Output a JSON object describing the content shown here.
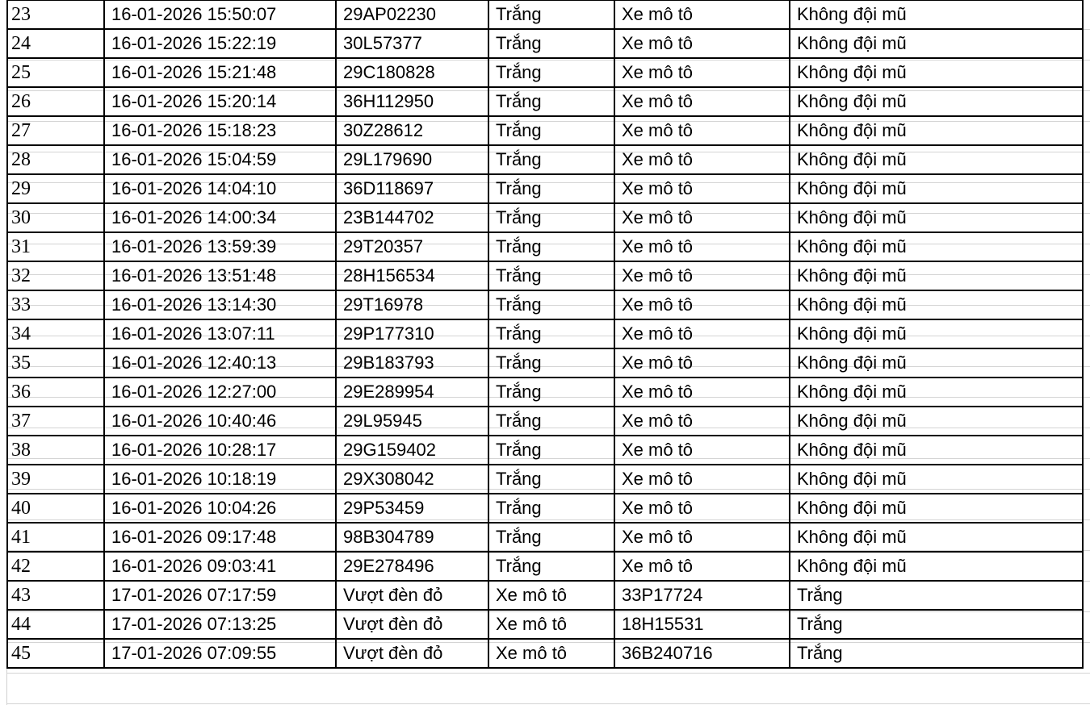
{
  "rows": [
    [
      "23",
      "16-01-2026 15:50:07",
      "29AP02230",
      "Trắng",
      "Xe mô tô",
      "Không đội mũ"
    ],
    [
      "24",
      "16-01-2026 15:22:19",
      "30L57377",
      "Trắng",
      "Xe mô tô",
      "Không đội mũ"
    ],
    [
      "25",
      "16-01-2026 15:21:48",
      "29C180828",
      "Trắng",
      "Xe mô tô",
      "Không đội mũ"
    ],
    [
      "26",
      "16-01-2026 15:20:14",
      "36H112950",
      "Trắng",
      "Xe mô tô",
      "Không đội mũ"
    ],
    [
      "27",
      "16-01-2026 15:18:23",
      "30Z28612",
      "Trắng",
      "Xe mô tô",
      "Không đội mũ"
    ],
    [
      "28",
      "16-01-2026 15:04:59",
      "29L179690",
      "Trắng",
      "Xe mô tô",
      "Không đội mũ"
    ],
    [
      "29",
      "16-01-2026 14:04:10",
      "36D118697",
      "Trắng",
      "Xe mô tô",
      "Không đội mũ"
    ],
    [
      "30",
      "16-01-2026 14:00:34",
      "23B144702",
      "Trắng",
      "Xe mô tô",
      "Không đội mũ"
    ],
    [
      "31",
      "16-01-2026 13:59:39",
      "29T20357",
      "Trắng",
      "Xe mô tô",
      "Không đội mũ"
    ],
    [
      "32",
      "16-01-2026 13:51:48",
      "28H156534",
      "Trắng",
      "Xe mô tô",
      "Không đội mũ"
    ],
    [
      "33",
      "16-01-2026 13:14:30",
      "29T16978",
      "Trắng",
      "Xe mô tô",
      "Không đội mũ"
    ],
    [
      "34",
      "16-01-2026 13:07:11",
      "29P177310",
      "Trắng",
      "Xe mô tô",
      "Không đội mũ"
    ],
    [
      "35",
      "16-01-2026 12:40:13",
      "29B183793",
      "Trắng",
      "Xe mô tô",
      "Không đội mũ"
    ],
    [
      "36",
      "16-01-2026 12:27:00",
      "29E289954",
      "Trắng",
      "Xe mô tô",
      "Không đội mũ"
    ],
    [
      "37",
      "16-01-2026 10:40:46",
      "29L95945",
      "Trắng",
      "Xe mô tô",
      "Không đội mũ"
    ],
    [
      "38",
      "16-01-2026 10:28:17",
      "29G159402",
      "Trắng",
      "Xe mô tô",
      "Không đội mũ"
    ],
    [
      "39",
      "16-01-2026 10:18:19",
      "29X308042",
      "Trắng",
      "Xe mô tô",
      "Không đội mũ"
    ],
    [
      "40",
      "16-01-2026 10:04:26",
      "29P53459",
      "Trắng",
      "Xe mô tô",
      "Không đội mũ"
    ],
    [
      "41",
      "16-01-2026 09:17:48",
      "98B304789",
      "Trắng",
      "Xe mô tô",
      "Không đội mũ"
    ],
    [
      "42",
      "16-01-2026 09:03:41",
      "29E278496",
      "Trắng",
      "Xe mô tô",
      "Không đội mũ"
    ],
    [
      "43",
      "17-01-2026 07:17:59",
      "Vượt đèn đỏ",
      "Xe mô tô",
      "33P17724",
      "Trắng"
    ],
    [
      "44",
      "17-01-2026 07:13:25",
      "Vượt đèn đỏ",
      "Xe mô tô",
      "18H15531",
      "Trắng"
    ],
    [
      "45",
      "17-01-2026 07:09:55",
      "Vượt đèn đỏ",
      "Xe mô tô",
      "36B240716",
      "Trắng"
    ]
  ]
}
